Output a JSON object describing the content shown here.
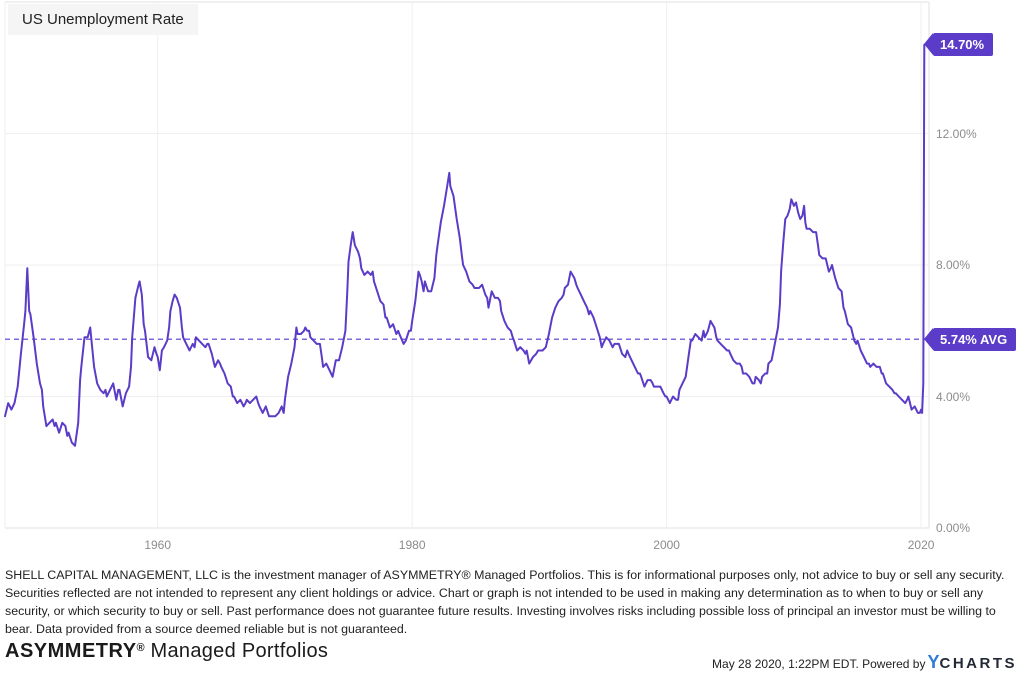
{
  "chart": {
    "title": "US Unemployment Rate",
    "last_value_label": "14.70%",
    "average_label": "5.74% AVG"
  },
  "axis": {
    "y_tick_labels": [
      "0.00%",
      "4.00%",
      "8.00%",
      "12.00%"
    ],
    "x_tick_labels": [
      "1960",
      "1980",
      "2000",
      "2020"
    ]
  },
  "colors": {
    "line": "#5b3cc8",
    "badge_background": "#5b3cc8",
    "average_dashed_line": "#7f68d9",
    "gridline": "#efefef",
    "axis_border": "#e2e2e2",
    "tick_text": "#8c8c8c",
    "title_box_background": "#f5f5f5",
    "logo_blue": "#2e7cd6",
    "logo_dark": "#232936"
  },
  "footer": {
    "disclaimer": "SHELL CAPITAL MANAGEMENT, LLC is the investment manager of ASYMMETRY® Managed Portfolios. This is for informational purposes only, not advice to buy or sell any security. Securities reflected are not intended to represent any client holdings or advice. Chart or graph is not intended to be used in making any determination as to when to buy or sell any security, or which security to buy or sell. Past performance does not guarantee future results. Investing involves risks including possible loss of principal an investor must be willing to bear. Data provided from a source deemed reliable but is not guaranteed.",
    "brand_name": "ASYMMETRY",
    "brand_reg": "®",
    "brand_suffix": " Managed Portfolios",
    "timestamp": "May 28 2020, 1:22PM EDT. Powered by ",
    "logo_y": "Y",
    "logo_charts": "CHARTS"
  },
  "chart_data": {
    "type": "line",
    "title": "US Unemployment Rate",
    "series_name": "US Unemployment Rate",
    "unit": "%",
    "last_value": 14.7,
    "last_value_date": "Apr 2020",
    "average": 5.74,
    "x_domain": [
      1948,
      2020.62
    ],
    "y_domain": [
      0,
      16
    ],
    "x_ticks": [
      1960,
      1980,
      2000,
      2020
    ],
    "y_ticks": [
      0,
      4,
      8,
      12
    ],
    "grid": true,
    "legend": "none",
    "points": [
      [
        1948.0,
        3.4
      ],
      [
        1948.25,
        3.8
      ],
      [
        1948.5,
        3.6
      ],
      [
        1948.75,
        3.8
      ],
      [
        1949.0,
        4.3
      ],
      [
        1949.25,
        5.3
      ],
      [
        1949.5,
        6.2
      ],
      [
        1949.6,
        6.6
      ],
      [
        1949.75,
        7.9
      ],
      [
        1949.9,
        6.6
      ],
      [
        1950.0,
        6.5
      ],
      [
        1950.25,
        5.8
      ],
      [
        1950.5,
        5.0
      ],
      [
        1950.75,
        4.4
      ],
      [
        1950.9,
        4.2
      ],
      [
        1951.0,
        3.7
      ],
      [
        1951.25,
        3.1
      ],
      [
        1951.5,
        3.2
      ],
      [
        1951.75,
        3.3
      ],
      [
        1951.9,
        3.1
      ],
      [
        1952.0,
        3.2
      ],
      [
        1952.25,
        2.9
      ],
      [
        1952.5,
        3.2
      ],
      [
        1952.75,
        3.1
      ],
      [
        1952.9,
        2.8
      ],
      [
        1953.0,
        2.9
      ],
      [
        1953.25,
        2.6
      ],
      [
        1953.5,
        2.5
      ],
      [
        1953.75,
        3.2
      ],
      [
        1953.9,
        4.5
      ],
      [
        1954.0,
        4.9
      ],
      [
        1954.25,
        5.8
      ],
      [
        1954.5,
        5.8
      ],
      [
        1954.7,
        6.1
      ],
      [
        1954.9,
        5.3
      ],
      [
        1955.0,
        4.9
      ],
      [
        1955.25,
        4.4
      ],
      [
        1955.5,
        4.2
      ],
      [
        1955.75,
        4.1
      ],
      [
        1955.9,
        4.2
      ],
      [
        1956.0,
        4.0
      ],
      [
        1956.25,
        4.2
      ],
      [
        1956.5,
        4.4
      ],
      [
        1956.75,
        3.9
      ],
      [
        1956.9,
        4.2
      ],
      [
        1957.0,
        4.2
      ],
      [
        1957.25,
        3.7
      ],
      [
        1957.5,
        4.1
      ],
      [
        1957.75,
        4.3
      ],
      [
        1957.9,
        4.9
      ],
      [
        1958.0,
        5.8
      ],
      [
        1958.25,
        7.0
      ],
      [
        1958.5,
        7.4
      ],
      [
        1958.58,
        7.5
      ],
      [
        1958.75,
        7.1
      ],
      [
        1958.9,
        6.2
      ],
      [
        1959.0,
        6.0
      ],
      [
        1959.25,
        5.2
      ],
      [
        1959.5,
        5.1
      ],
      [
        1959.75,
        5.5
      ],
      [
        1959.9,
        5.3
      ],
      [
        1960.0,
        5.2
      ],
      [
        1960.17,
        4.8
      ],
      [
        1960.33,
        5.4
      ],
      [
        1960.5,
        5.5
      ],
      [
        1960.75,
        5.7
      ],
      [
        1960.9,
        6.1
      ],
      [
        1961.0,
        6.6
      ],
      [
        1961.17,
        6.9
      ],
      [
        1961.33,
        7.1
      ],
      [
        1961.5,
        7.0
      ],
      [
        1961.75,
        6.7
      ],
      [
        1961.9,
        6.1
      ],
      [
        1962.0,
        5.8
      ],
      [
        1962.25,
        5.6
      ],
      [
        1962.5,
        5.4
      ],
      [
        1962.75,
        5.6
      ],
      [
        1962.9,
        5.5
      ],
      [
        1963.0,
        5.8
      ],
      [
        1963.25,
        5.7
      ],
      [
        1963.5,
        5.6
      ],
      [
        1963.75,
        5.5
      ],
      [
        1963.9,
        5.6
      ],
      [
        1964.0,
        5.6
      ],
      [
        1964.25,
        5.3
      ],
      [
        1964.5,
        4.9
      ],
      [
        1964.75,
        5.1
      ],
      [
        1964.9,
        5.0
      ],
      [
        1965.0,
        4.9
      ],
      [
        1965.25,
        4.7
      ],
      [
        1965.5,
        4.4
      ],
      [
        1965.75,
        4.3
      ],
      [
        1965.9,
        4.0
      ],
      [
        1966.0,
        4.0
      ],
      [
        1966.25,
        3.8
      ],
      [
        1966.5,
        3.9
      ],
      [
        1966.75,
        3.7
      ],
      [
        1966.9,
        3.8
      ],
      [
        1967.0,
        3.9
      ],
      [
        1967.25,
        3.8
      ],
      [
        1967.5,
        3.9
      ],
      [
        1967.75,
        4.0
      ],
      [
        1967.9,
        3.8
      ],
      [
        1968.0,
        3.7
      ],
      [
        1968.25,
        3.5
      ],
      [
        1968.5,
        3.7
      ],
      [
        1968.75,
        3.4
      ],
      [
        1968.9,
        3.4
      ],
      [
        1969.0,
        3.4
      ],
      [
        1969.25,
        3.4
      ],
      [
        1969.5,
        3.5
      ],
      [
        1969.75,
        3.7
      ],
      [
        1969.9,
        3.5
      ],
      [
        1970.0,
        3.9
      ],
      [
        1970.25,
        4.6
      ],
      [
        1970.5,
        5.0
      ],
      [
        1970.75,
        5.5
      ],
      [
        1970.9,
        6.1
      ],
      [
        1971.0,
        5.9
      ],
      [
        1971.25,
        5.9
      ],
      [
        1971.5,
        6.0
      ],
      [
        1971.6,
        6.1
      ],
      [
        1971.75,
        6.0
      ],
      [
        1971.9,
        6.0
      ],
      [
        1972.0,
        5.8
      ],
      [
        1972.25,
        5.7
      ],
      [
        1972.5,
        5.6
      ],
      [
        1972.75,
        5.6
      ],
      [
        1972.9,
        5.2
      ],
      [
        1973.0,
        4.9
      ],
      [
        1973.25,
        5.0
      ],
      [
        1973.5,
        4.8
      ],
      [
        1973.75,
        4.6
      ],
      [
        1973.9,
        4.9
      ],
      [
        1974.0,
        5.1
      ],
      [
        1974.25,
        5.1
      ],
      [
        1974.5,
        5.5
      ],
      [
        1974.75,
        6.0
      ],
      [
        1974.9,
        7.2
      ],
      [
        1975.0,
        8.1
      ],
      [
        1975.17,
        8.6
      ],
      [
        1975.33,
        9.0
      ],
      [
        1975.5,
        8.6
      ],
      [
        1975.75,
        8.4
      ],
      [
        1975.9,
        8.2
      ],
      [
        1976.0,
        7.9
      ],
      [
        1976.25,
        7.7
      ],
      [
        1976.5,
        7.8
      ],
      [
        1976.75,
        7.7
      ],
      [
        1976.9,
        7.8
      ],
      [
        1977.0,
        7.5
      ],
      [
        1977.25,
        7.2
      ],
      [
        1977.5,
        6.9
      ],
      [
        1977.75,
        6.8
      ],
      [
        1977.9,
        6.4
      ],
      [
        1978.0,
        6.4
      ],
      [
        1978.25,
        6.1
      ],
      [
        1978.5,
        6.2
      ],
      [
        1978.75,
        5.9
      ],
      [
        1978.9,
        6.0
      ],
      [
        1979.0,
        5.9
      ],
      [
        1979.33,
        5.6
      ],
      [
        1979.5,
        5.7
      ],
      [
        1979.75,
        6.0
      ],
      [
        1979.9,
        6.0
      ],
      [
        1980.0,
        6.3
      ],
      [
        1980.25,
        6.9
      ],
      [
        1980.5,
        7.8
      ],
      [
        1980.6,
        7.7
      ],
      [
        1980.75,
        7.5
      ],
      [
        1980.9,
        7.2
      ],
      [
        1981.0,
        7.5
      ],
      [
        1981.25,
        7.2
      ],
      [
        1981.5,
        7.2
      ],
      [
        1981.75,
        7.6
      ],
      [
        1981.9,
        8.3
      ],
      [
        1982.0,
        8.6
      ],
      [
        1982.25,
        9.3
      ],
      [
        1982.5,
        9.8
      ],
      [
        1982.75,
        10.4
      ],
      [
        1982.92,
        10.8
      ],
      [
        1983.0,
        10.4
      ],
      [
        1983.25,
        10.1
      ],
      [
        1983.5,
        9.4
      ],
      [
        1983.75,
        8.8
      ],
      [
        1983.9,
        8.3
      ],
      [
        1984.0,
        8.0
      ],
      [
        1984.25,
        7.8
      ],
      [
        1984.5,
        7.5
      ],
      [
        1984.75,
        7.4
      ],
      [
        1984.9,
        7.3
      ],
      [
        1985.0,
        7.3
      ],
      [
        1985.25,
        7.3
      ],
      [
        1985.5,
        7.4
      ],
      [
        1985.75,
        7.1
      ],
      [
        1985.9,
        7.0
      ],
      [
        1986.0,
        6.7
      ],
      [
        1986.25,
        7.2
      ],
      [
        1986.5,
        7.0
      ],
      [
        1986.75,
        7.0
      ],
      [
        1986.9,
        6.9
      ],
      [
        1987.0,
        6.6
      ],
      [
        1987.25,
        6.3
      ],
      [
        1987.5,
        6.1
      ],
      [
        1987.75,
        6.0
      ],
      [
        1987.9,
        5.8
      ],
      [
        1988.0,
        5.7
      ],
      [
        1988.25,
        5.4
      ],
      [
        1988.5,
        5.5
      ],
      [
        1988.75,
        5.4
      ],
      [
        1988.9,
        5.3
      ],
      [
        1989.0,
        5.4
      ],
      [
        1989.2,
        5.0
      ],
      [
        1989.5,
        5.2
      ],
      [
        1989.75,
        5.3
      ],
      [
        1989.9,
        5.4
      ],
      [
        1990.0,
        5.4
      ],
      [
        1990.25,
        5.4
      ],
      [
        1990.5,
        5.5
      ],
      [
        1990.75,
        5.9
      ],
      [
        1990.9,
        6.2
      ],
      [
        1991.0,
        6.4
      ],
      [
        1991.25,
        6.7
      ],
      [
        1991.5,
        6.9
      ],
      [
        1991.75,
        7.0
      ],
      [
        1991.9,
        7.1
      ],
      [
        1992.0,
        7.3
      ],
      [
        1992.25,
        7.4
      ],
      [
        1992.45,
        7.8
      ],
      [
        1992.6,
        7.7
      ],
      [
        1992.75,
        7.6
      ],
      [
        1992.9,
        7.4
      ],
      [
        1993.0,
        7.3
      ],
      [
        1993.25,
        7.1
      ],
      [
        1993.5,
        6.9
      ],
      [
        1993.75,
        6.7
      ],
      [
        1993.9,
        6.5
      ],
      [
        1994.0,
        6.6
      ],
      [
        1994.25,
        6.4
      ],
      [
        1994.5,
        6.1
      ],
      [
        1994.75,
        5.8
      ],
      [
        1994.9,
        5.5
      ],
      [
        1995.0,
        5.6
      ],
      [
        1995.25,
        5.8
      ],
      [
        1995.5,
        5.7
      ],
      [
        1995.75,
        5.5
      ],
      [
        1995.9,
        5.6
      ],
      [
        1996.0,
        5.6
      ],
      [
        1996.25,
        5.6
      ],
      [
        1996.5,
        5.3
      ],
      [
        1996.75,
        5.2
      ],
      [
        1996.9,
        5.4
      ],
      [
        1997.0,
        5.3
      ],
      [
        1997.25,
        5.1
      ],
      [
        1997.5,
        4.9
      ],
      [
        1997.75,
        4.7
      ],
      [
        1997.9,
        4.7
      ],
      [
        1998.0,
        4.6
      ],
      [
        1998.25,
        4.3
      ],
      [
        1998.5,
        4.5
      ],
      [
        1998.75,
        4.5
      ],
      [
        1998.9,
        4.4
      ],
      [
        1999.0,
        4.3
      ],
      [
        1999.25,
        4.3
      ],
      [
        1999.5,
        4.3
      ],
      [
        1999.75,
        4.1
      ],
      [
        1999.9,
        4.0
      ],
      [
        2000.0,
        4.0
      ],
      [
        2000.25,
        3.8
      ],
      [
        2000.5,
        4.0
      ],
      [
        2000.75,
        3.9
      ],
      [
        2000.9,
        3.9
      ],
      [
        2001.0,
        4.2
      ],
      [
        2001.25,
        4.4
      ],
      [
        2001.5,
        4.6
      ],
      [
        2001.75,
        5.3
      ],
      [
        2001.9,
        5.7
      ],
      [
        2002.0,
        5.7
      ],
      [
        2002.25,
        5.9
      ],
      [
        2002.5,
        5.8
      ],
      [
        2002.75,
        5.7
      ],
      [
        2002.9,
        6.0
      ],
      [
        2003.0,
        5.8
      ],
      [
        2003.25,
        6.0
      ],
      [
        2003.45,
        6.3
      ],
      [
        2003.6,
        6.2
      ],
      [
        2003.75,
        6.1
      ],
      [
        2003.9,
        5.8
      ],
      [
        2004.0,
        5.7
      ],
      [
        2004.25,
        5.6
      ],
      [
        2004.5,
        5.5
      ],
      [
        2004.75,
        5.4
      ],
      [
        2004.9,
        5.4
      ],
      [
        2005.0,
        5.3
      ],
      [
        2005.25,
        5.1
      ],
      [
        2005.5,
        5.0
      ],
      [
        2005.75,
        5.0
      ],
      [
        2005.9,
        4.9
      ],
      [
        2006.0,
        4.7
      ],
      [
        2006.25,
        4.7
      ],
      [
        2006.5,
        4.6
      ],
      [
        2006.75,
        4.4
      ],
      [
        2006.9,
        4.4
      ],
      [
        2007.0,
        4.6
      ],
      [
        2007.25,
        4.5
      ],
      [
        2007.4,
        4.4
      ],
      [
        2007.5,
        4.6
      ],
      [
        2007.75,
        4.7
      ],
      [
        2007.9,
        4.7
      ],
      [
        2008.0,
        5.0
      ],
      [
        2008.25,
        5.1
      ],
      [
        2008.5,
        5.6
      ],
      [
        2008.75,
        6.1
      ],
      [
        2008.9,
        6.8
      ],
      [
        2009.0,
        7.8
      ],
      [
        2009.17,
        8.7
      ],
      [
        2009.33,
        9.4
      ],
      [
        2009.5,
        9.5
      ],
      [
        2009.67,
        9.7
      ],
      [
        2009.8,
        10.0
      ],
      [
        2009.9,
        9.9
      ],
      [
        2010.0,
        9.8
      ],
      [
        2010.17,
        9.9
      ],
      [
        2010.33,
        9.6
      ],
      [
        2010.5,
        9.4
      ],
      [
        2010.67,
        9.5
      ],
      [
        2010.8,
        9.8
      ],
      [
        2010.9,
        9.3
      ],
      [
        2011.0,
        9.1
      ],
      [
        2011.25,
        9.1
      ],
      [
        2011.5,
        9.0
      ],
      [
        2011.75,
        9.0
      ],
      [
        2011.9,
        8.6
      ],
      [
        2012.0,
        8.3
      ],
      [
        2012.25,
        8.2
      ],
      [
        2012.5,
        8.2
      ],
      [
        2012.75,
        7.8
      ],
      [
        2012.9,
        7.9
      ],
      [
        2013.0,
        8.0
      ],
      [
        2013.25,
        7.6
      ],
      [
        2013.5,
        7.3
      ],
      [
        2013.75,
        7.2
      ],
      [
        2013.9,
        6.7
      ],
      [
        2014.0,
        6.6
      ],
      [
        2014.25,
        6.2
      ],
      [
        2014.5,
        6.1
      ],
      [
        2014.75,
        5.7
      ],
      [
        2014.9,
        5.6
      ],
      [
        2015.0,
        5.7
      ],
      [
        2015.25,
        5.4
      ],
      [
        2015.5,
        5.2
      ],
      [
        2015.75,
        5.0
      ],
      [
        2015.9,
        5.0
      ],
      [
        2016.0,
        4.9
      ],
      [
        2016.25,
        5.0
      ],
      [
        2016.5,
        4.9
      ],
      [
        2016.75,
        4.9
      ],
      [
        2016.9,
        4.7
      ],
      [
        2017.0,
        4.7
      ],
      [
        2017.25,
        4.4
      ],
      [
        2017.5,
        4.3
      ],
      [
        2017.75,
        4.2
      ],
      [
        2017.9,
        4.1
      ],
      [
        2018.0,
        4.1
      ],
      [
        2018.25,
        4.0
      ],
      [
        2018.5,
        3.9
      ],
      [
        2018.75,
        3.8
      ],
      [
        2018.9,
        3.9
      ],
      [
        2019.0,
        4.0
      ],
      [
        2019.25,
        3.6
      ],
      [
        2019.5,
        3.7
      ],
      [
        2019.75,
        3.5
      ],
      [
        2019.9,
        3.5
      ],
      [
        2020.0,
        3.6
      ],
      [
        2020.08,
        3.5
      ],
      [
        2020.17,
        4.4
      ],
      [
        2020.25,
        14.7
      ]
    ]
  }
}
